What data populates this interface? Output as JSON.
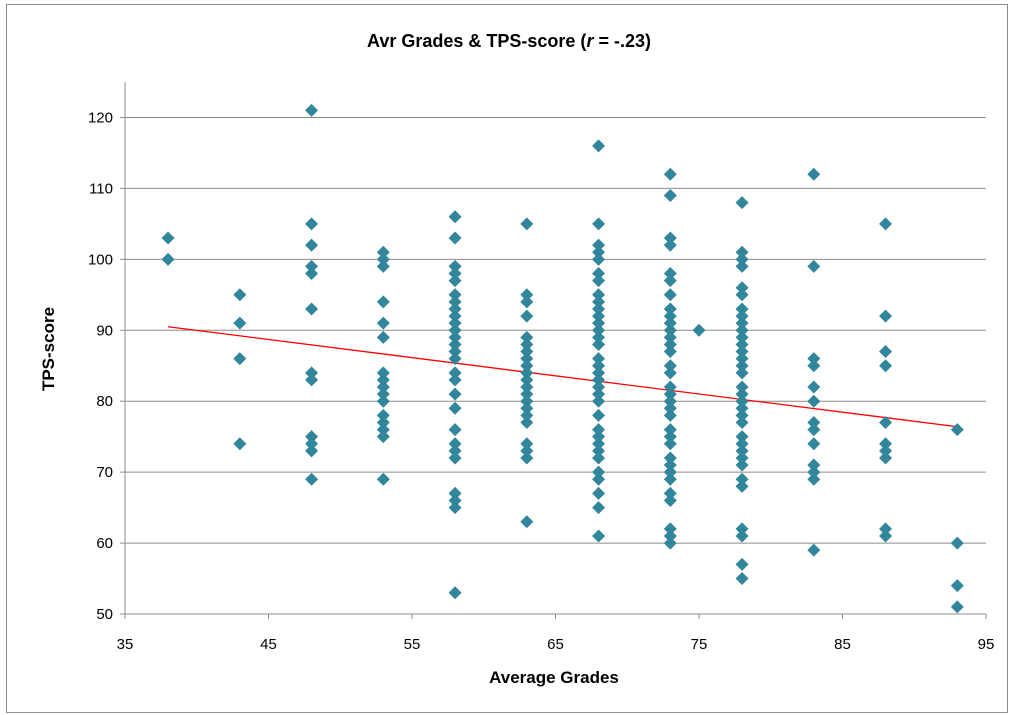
{
  "chart_data": {
    "type": "scatter",
    "title_main": "Avr Grades & TPS-score (",
    "title_r": "r",
    "title_tail": " = -.23)",
    "xlabel": "Average Grades",
    "ylabel": "TPS-score",
    "xlim": [
      35,
      95
    ],
    "ylim": [
      50,
      125
    ],
    "xticks": [
      35,
      45,
      55,
      65,
      75,
      85,
      95
    ],
    "yticks": [
      50,
      60,
      70,
      80,
      90,
      100,
      110,
      120
    ],
    "grid": "horizontal",
    "marker_color": "#31869B",
    "trend_color": "#FF0000",
    "trendline": {
      "x": [
        38,
        93
      ],
      "y": [
        90.5,
        76.4
      ]
    },
    "series": [
      {
        "points": [
          [
            38,
            103
          ],
          [
            38,
            100
          ],
          [
            43,
            95
          ],
          [
            43,
            91
          ],
          [
            43,
            86
          ],
          [
            43,
            74
          ],
          [
            48,
            121
          ],
          [
            48,
            105
          ],
          [
            48,
            102
          ],
          [
            48,
            99
          ],
          [
            48,
            98
          ],
          [
            48,
            93
          ],
          [
            48,
            84
          ],
          [
            48,
            83
          ],
          [
            48,
            75
          ],
          [
            48,
            74
          ],
          [
            48,
            73
          ],
          [
            48,
            69
          ],
          [
            53,
            101
          ],
          [
            53,
            100
          ],
          [
            53,
            99
          ],
          [
            53,
            94
          ],
          [
            53,
            91
          ],
          [
            53,
            89
          ],
          [
            53,
            84
          ],
          [
            53,
            83
          ],
          [
            53,
            82
          ],
          [
            53,
            81
          ],
          [
            53,
            80
          ],
          [
            53,
            78
          ],
          [
            53,
            77
          ],
          [
            53,
            76
          ],
          [
            53,
            75
          ],
          [
            53,
            69
          ],
          [
            58,
            106
          ],
          [
            58,
            103
          ],
          [
            58,
            99
          ],
          [
            58,
            98
          ],
          [
            58,
            97
          ],
          [
            58,
            95
          ],
          [
            58,
            94
          ],
          [
            58,
            93
          ],
          [
            58,
            92
          ],
          [
            58,
            91
          ],
          [
            58,
            90
          ],
          [
            58,
            89
          ],
          [
            58,
            88
          ],
          [
            58,
            87
          ],
          [
            58,
            86
          ],
          [
            58,
            84
          ],
          [
            58,
            83
          ],
          [
            58,
            81
          ],
          [
            58,
            79
          ],
          [
            58,
            76
          ],
          [
            58,
            74
          ],
          [
            58,
            73
          ],
          [
            58,
            72
          ],
          [
            58,
            67
          ],
          [
            58,
            66
          ],
          [
            58,
            65
          ],
          [
            58,
            53
          ],
          [
            63,
            105
          ],
          [
            63,
            95
          ],
          [
            63,
            94
          ],
          [
            63,
            92
          ],
          [
            63,
            89
          ],
          [
            63,
            88
          ],
          [
            63,
            87
          ],
          [
            63,
            86
          ],
          [
            63,
            85
          ],
          [
            63,
            84
          ],
          [
            63,
            83
          ],
          [
            63,
            82
          ],
          [
            63,
            81
          ],
          [
            63,
            80
          ],
          [
            63,
            79
          ],
          [
            63,
            78
          ],
          [
            63,
            77
          ],
          [
            63,
            74
          ],
          [
            63,
            73
          ],
          [
            63,
            72
          ],
          [
            63,
            63
          ],
          [
            68,
            116
          ],
          [
            68,
            105
          ],
          [
            68,
            102
          ],
          [
            68,
            101
          ],
          [
            68,
            100
          ],
          [
            68,
            98
          ],
          [
            68,
            97
          ],
          [
            68,
            95
          ],
          [
            68,
            94
          ],
          [
            68,
            93
          ],
          [
            68,
            92
          ],
          [
            68,
            91
          ],
          [
            68,
            90
          ],
          [
            68,
            89
          ],
          [
            68,
            88
          ],
          [
            68,
            86
          ],
          [
            68,
            85
          ],
          [
            68,
            84
          ],
          [
            68,
            83
          ],
          [
            68,
            82
          ],
          [
            68,
            81
          ],
          [
            68,
            80
          ],
          [
            68,
            78
          ],
          [
            68,
            76
          ],
          [
            68,
            75
          ],
          [
            68,
            74
          ],
          [
            68,
            73
          ],
          [
            68,
            72
          ],
          [
            68,
            70
          ],
          [
            68,
            69
          ],
          [
            68,
            67
          ],
          [
            68,
            65
          ],
          [
            68,
            61
          ],
          [
            73,
            112
          ],
          [
            73,
            109
          ],
          [
            73,
            103
          ],
          [
            73,
            102
          ],
          [
            73,
            98
          ],
          [
            73,
            97
          ],
          [
            73,
            95
          ],
          [
            73,
            93
          ],
          [
            73,
            92
          ],
          [
            73,
            91
          ],
          [
            73,
            90
          ],
          [
            73,
            89
          ],
          [
            73,
            88
          ],
          [
            73,
            87
          ],
          [
            73,
            85
          ],
          [
            73,
            84
          ],
          [
            73,
            82
          ],
          [
            73,
            81
          ],
          [
            73,
            80
          ],
          [
            73,
            79
          ],
          [
            73,
            78
          ],
          [
            73,
            76
          ],
          [
            73,
            75
          ],
          [
            73,
            74
          ],
          [
            73,
            72
          ],
          [
            73,
            71
          ],
          [
            73,
            70
          ],
          [
            73,
            69
          ],
          [
            73,
            67
          ],
          [
            73,
            66
          ],
          [
            73,
            62
          ],
          [
            73,
            61
          ],
          [
            73,
            60
          ],
          [
            75,
            90
          ],
          [
            78,
            108
          ],
          [
            78,
            101
          ],
          [
            78,
            100
          ],
          [
            78,
            99
          ],
          [
            78,
            96
          ],
          [
            78,
            95
          ],
          [
            78,
            93
          ],
          [
            78,
            92
          ],
          [
            78,
            91
          ],
          [
            78,
            90
          ],
          [
            78,
            89
          ],
          [
            78,
            88
          ],
          [
            78,
            87
          ],
          [
            78,
            86
          ],
          [
            78,
            85
          ],
          [
            78,
            84
          ],
          [
            78,
            82
          ],
          [
            78,
            81
          ],
          [
            78,
            80
          ],
          [
            78,
            79
          ],
          [
            78,
            78
          ],
          [
            78,
            77
          ],
          [
            78,
            75
          ],
          [
            78,
            74
          ],
          [
            78,
            73
          ],
          [
            78,
            72
          ],
          [
            78,
            71
          ],
          [
            78,
            69
          ],
          [
            78,
            68
          ],
          [
            78,
            62
          ],
          [
            78,
            61
          ],
          [
            78,
            57
          ],
          [
            78,
            55
          ],
          [
            83,
            112
          ],
          [
            83,
            99
          ],
          [
            83,
            86
          ],
          [
            83,
            85
          ],
          [
            83,
            82
          ],
          [
            83,
            80
          ],
          [
            83,
            77
          ],
          [
            83,
            76
          ],
          [
            83,
            74
          ],
          [
            83,
            71
          ],
          [
            83,
            70
          ],
          [
            83,
            69
          ],
          [
            83,
            59
          ],
          [
            88,
            105
          ],
          [
            88,
            92
          ],
          [
            88,
            87
          ],
          [
            88,
            85
          ],
          [
            88,
            77
          ],
          [
            88,
            74
          ],
          [
            88,
            73
          ],
          [
            88,
            72
          ],
          [
            88,
            62
          ],
          [
            88,
            61
          ],
          [
            93,
            76
          ],
          [
            93,
            60
          ],
          [
            93,
            54
          ],
          [
            93,
            51
          ]
        ]
      }
    ]
  }
}
